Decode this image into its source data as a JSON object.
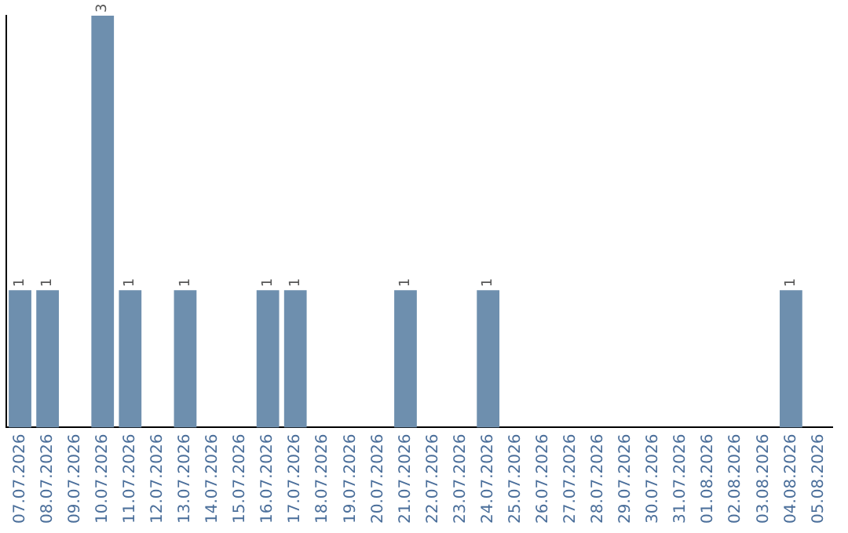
{
  "chart_data": {
    "type": "bar",
    "categories": [
      "07.07.2026",
      "08.07.2026",
      "09.07.2026",
      "10.07.2026",
      "11.07.2026",
      "12.07.2026",
      "13.07.2026",
      "14.07.2026",
      "15.07.2026",
      "16.07.2026",
      "17.07.2026",
      "18.07.2026",
      "19.07.2026",
      "20.07.2026",
      "21.07.2026",
      "22.07.2026",
      "23.07.2026",
      "24.07.2026",
      "25.07.2026",
      "26.07.2026",
      "27.07.2026",
      "28.07.2026",
      "29.07.2026",
      "30.07.2026",
      "31.07.2026",
      "01.08.2026",
      "02.08.2026",
      "03.08.2026",
      "04.08.2026",
      "05.08.2026"
    ],
    "values": [
      1,
      1,
      0,
      3,
      1,
      0,
      1,
      0,
      0,
      1,
      1,
      0,
      0,
      0,
      1,
      0,
      0,
      1,
      0,
      0,
      0,
      0,
      0,
      0,
      0,
      0,
      0,
      0,
      1,
      0
    ],
    "value_labels": [
      "1",
      "1",
      null,
      "3",
      "1",
      null,
      "1",
      null,
      null,
      "1",
      "1",
      null,
      null,
      null,
      "1",
      null,
      null,
      "1",
      null,
      null,
      null,
      null,
      null,
      null,
      null,
      null,
      null,
      null,
      "1",
      null
    ],
    "color": "#6e8fae",
    "ylim": [
      0,
      3
    ],
    "tick_labels": "x",
    "grid": false,
    "legend": false
  }
}
